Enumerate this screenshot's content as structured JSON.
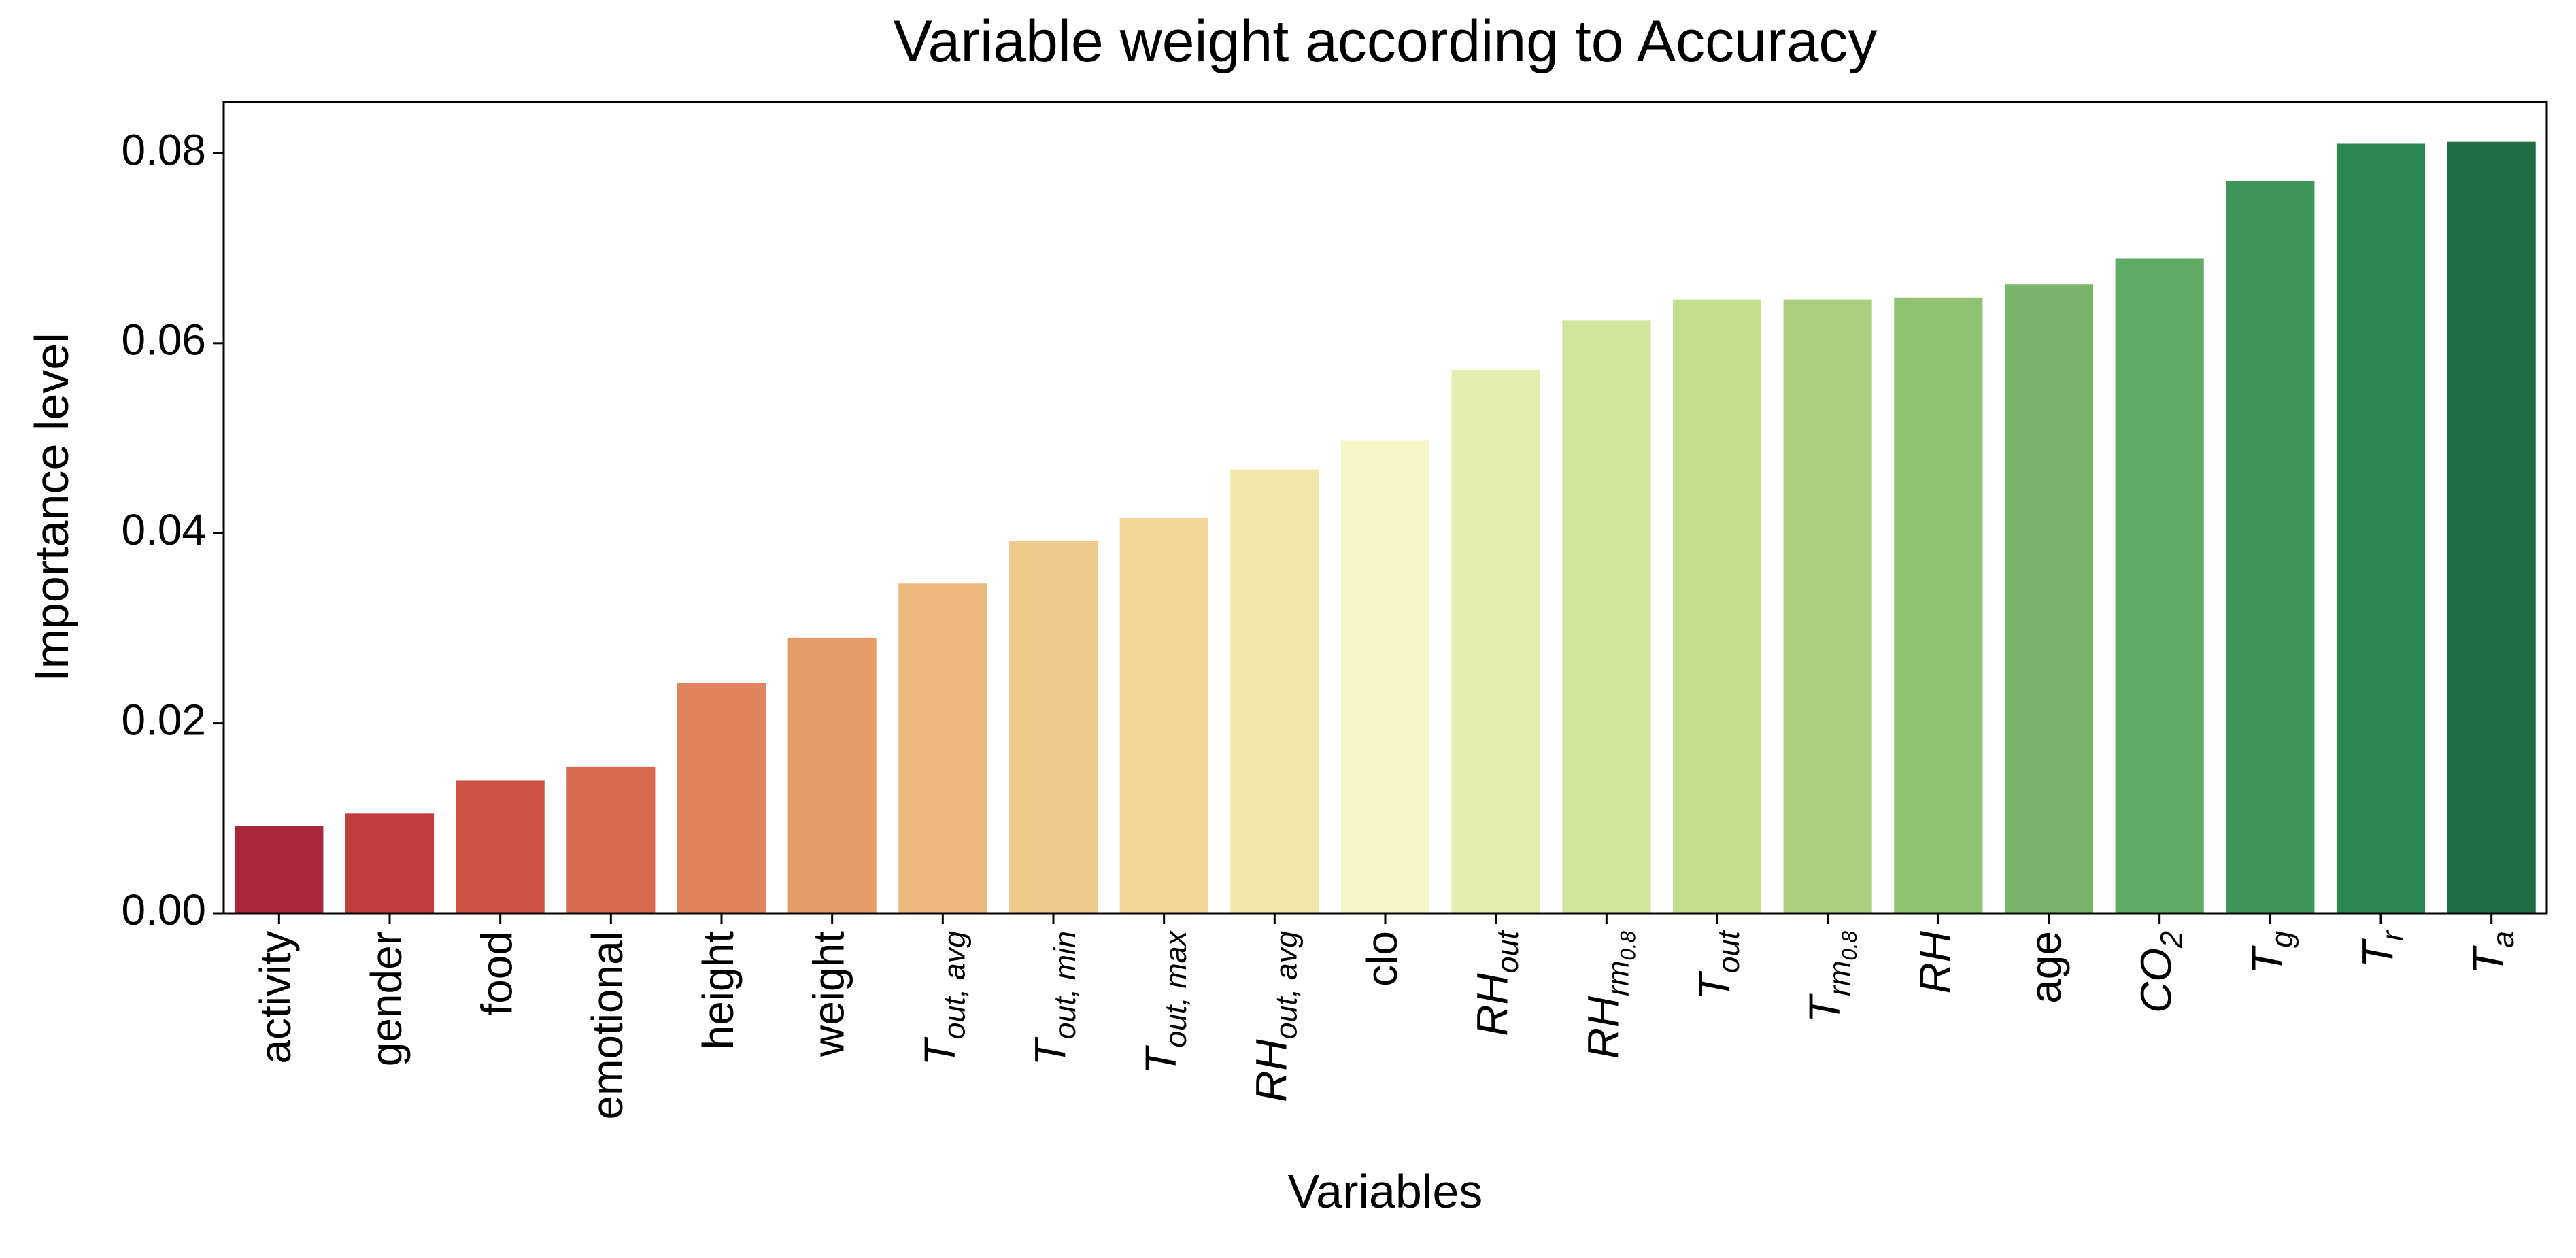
{
  "chart_data": {
    "type": "bar",
    "title": "Variable weight according to Accuracy",
    "xlabel": "Variables",
    "ylabel": "Importance level",
    "categories": [
      "activity",
      "gender",
      "food",
      "emotional",
      "height",
      "weight",
      [
        "T",
        "out, avg"
      ],
      [
        "T",
        "out, min"
      ],
      [
        "T",
        "out, max"
      ],
      [
        "RH",
        "out, avg"
      ],
      "clo",
      [
        "RH",
        "out"
      ],
      [
        "RH",
        "rm",
        "0.8"
      ],
      [
        "T",
        "out"
      ],
      [
        "T",
        "rm",
        "0.8"
      ],
      [
        "RH"
      ],
      "age",
      [
        "CO",
        "2"
      ],
      [
        "T",
        "g"
      ],
      [
        "T",
        "r"
      ],
      [
        "T",
        "a"
      ]
    ],
    "values": [
      0.0092,
      0.0105,
      0.014,
      0.0154,
      0.0242,
      0.029,
      0.0347,
      0.0392,
      0.0416,
      0.0467,
      0.0498,
      0.0572,
      0.0624,
      0.0646,
      0.0646,
      0.0648,
      0.0662,
      0.0689,
      0.0771,
      0.081,
      0.0812
    ],
    "colors": [
      "#a8283a",
      "#c13d3b",
      "#cd5343",
      "#d9694e",
      "#e1845e",
      "#e79c68",
      "#ecb77a",
      "#efc98a",
      "#f1d698",
      "#f2e6aa",
      "#f4f7c5",
      "#e3eeae",
      "#d3e59c",
      "#c2de8e",
      "#accf7f",
      "#91c274",
      "#7ab56c",
      "#5faa64",
      "#3d955a",
      "#2b8752",
      "#1f6e43"
    ],
    "ylim": [
      0,
      0.0854
    ],
    "yticks": [
      {
        "value": 0,
        "label": "0.00"
      },
      {
        "value": 0.02,
        "label": "0.02"
      },
      {
        "value": 0.04,
        "label": "0.04"
      },
      {
        "value": 0.06,
        "label": "0.06"
      },
      {
        "value": 0.08,
        "label": "0.08"
      }
    ],
    "grid": false
  }
}
